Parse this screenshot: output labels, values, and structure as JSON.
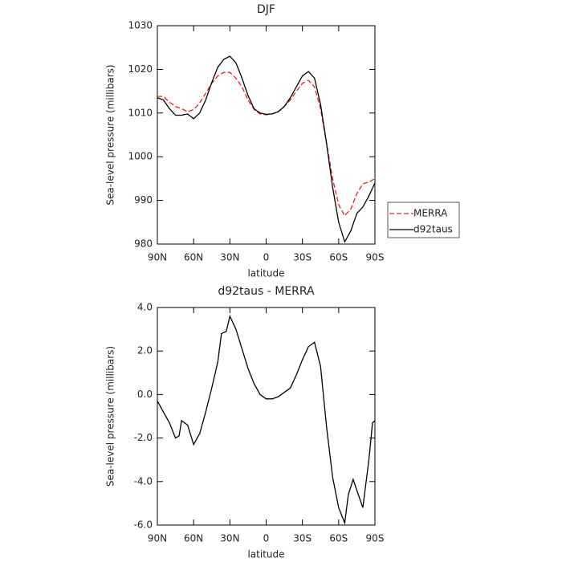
{
  "chart_data": [
    {
      "type": "line",
      "title": "DJF",
      "x_label": "latitude",
      "y_label": "Sea-level pressure (millibars)",
      "x": [
        90,
        85,
        80,
        75,
        70,
        65,
        60,
        55,
        50,
        45,
        40,
        35,
        30,
        25,
        20,
        15,
        10,
        5,
        0,
        -5,
        -10,
        -15,
        -20,
        -25,
        -30,
        -35,
        -40,
        -45,
        -50,
        -55,
        -60,
        -65,
        -70,
        -75,
        -80,
        -85,
        -90
      ],
      "series": [
        {
          "name": "MERRA",
          "color": "#e8201f",
          "dashed": true,
          "values": [
            1013.8,
            1013.8,
            1012.5,
            1011.5,
            1011,
            1010.3,
            1010.8,
            1012.3,
            1014.5,
            1016.8,
            1018.5,
            1019.3,
            1019.3,
            1018,
            1016,
            1013,
            1010.8,
            1009.8,
            1009.6,
            1009.8,
            1010.3,
            1011.5,
            1013,
            1015,
            1016.8,
            1017.5,
            1016,
            1011,
            1003,
            995,
            989,
            986.5,
            988,
            991.5,
            993.8,
            994.2,
            995
          ]
        },
        {
          "name": "d92taus",
          "color": "#000000",
          "dashed": false,
          "values": [
            1013.5,
            1013,
            1011,
            1009.5,
            1009.5,
            1009.8,
            1008.7,
            1010,
            1013,
            1017,
            1020.5,
            1022.3,
            1023,
            1021.5,
            1018,
            1014,
            1011,
            1010,
            1009.7,
            1009.8,
            1010.3,
            1011.5,
            1013.5,
            1016,
            1018.5,
            1019.5,
            1018,
            1012,
            1003,
            993,
            985,
            980.5,
            983,
            987,
            988.5,
            991,
            994
          ]
        }
      ],
      "xlim": [
        90,
        -90
      ],
      "xticks": [
        {
          "value": 90,
          "label": "90N"
        },
        {
          "value": 60,
          "label": "60N"
        },
        {
          "value": 30,
          "label": "30N"
        },
        0,
        {
          "value": -30,
          "label": "30S"
        },
        {
          "value": -60,
          "label": "60S"
        },
        {
          "value": -90,
          "label": "90S"
        }
      ],
      "ylim": [
        980,
        1030
      ],
      "yticks": [
        980,
        990,
        1000,
        1010,
        1020,
        1030
      ],
      "legend": "right",
      "grid": false
    },
    {
      "type": "line",
      "title": "d92taus - MERRA",
      "x_label": "latitude",
      "y_label": "Sea-level pressure (millibars)",
      "x": [
        90,
        85,
        80,
        75,
        72,
        70,
        65,
        60,
        55,
        50,
        45,
        40,
        37,
        33,
        30,
        25,
        20,
        15,
        10,
        5,
        0,
        -5,
        -10,
        -15,
        -20,
        -25,
        -30,
        -35,
        -40,
        -45,
        -50,
        -55,
        -60,
        -65,
        -68,
        -72,
        -75,
        -80,
        -85,
        -88,
        -90
      ],
      "series": [
        {
          "name": "d92taus - MERRA",
          "color": "#000000",
          "dashed": false,
          "values": [
            -0.3,
            -0.8,
            -1.3,
            -2.0,
            -1.9,
            -1.2,
            -1.4,
            -2.3,
            -1.8,
            -0.8,
            0.3,
            1.5,
            2.8,
            2.9,
            3.6,
            3.0,
            2.1,
            1.2,
            0.5,
            0.0,
            -0.2,
            -0.2,
            -0.1,
            0.1,
            0.3,
            0.9,
            1.6,
            2.2,
            2.4,
            1.3,
            -1.5,
            -3.8,
            -5.2,
            -5.9,
            -4.6,
            -3.9,
            -4.4,
            -5.2,
            -3.0,
            -1.3,
            -1.2
          ]
        }
      ],
      "xlim": [
        90,
        -90
      ],
      "xticks": [
        {
          "value": 90,
          "label": "90N"
        },
        {
          "value": 60,
          "label": "60N"
        },
        {
          "value": 30,
          "label": "30N"
        },
        0,
        {
          "value": -30,
          "label": "30S"
        },
        {
          "value": -60,
          "label": "60S"
        },
        {
          "value": -90,
          "label": "90S"
        }
      ],
      "ylim": [
        -6,
        4
      ],
      "yticks": [
        {
          "value": -6,
          "label": "-6.0"
        },
        {
          "value": -4,
          "label": "-4.0"
        },
        {
          "value": -2,
          "label": "-2.0"
        },
        {
          "value": 0,
          "label": "0.0"
        },
        {
          "value": 2,
          "label": "2.0"
        },
        {
          "value": 4,
          "label": "4.0"
        }
      ],
      "grid": false
    }
  ]
}
